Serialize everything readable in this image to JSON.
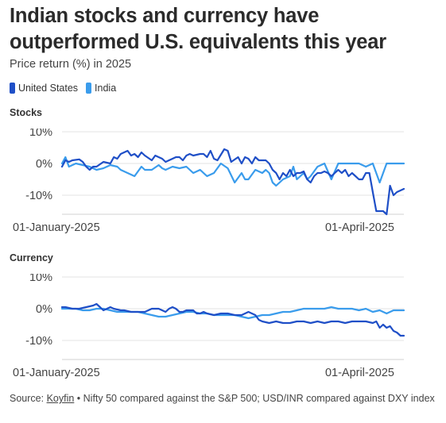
{
  "title": "Indian stocks and currency have outperformed U.S. equivalents this year",
  "subtitle": "Price return (%) in 2025",
  "colors": {
    "United States": "#1f4fc7",
    "India": "#3a9cec"
  },
  "legend": [
    {
      "name": "United States",
      "color": "#1f4fc7"
    },
    {
      "name": "India",
      "color": "#3a9cec"
    }
  ],
  "footer": {
    "source_prefix": "Source: ",
    "source_link": "Koyfin",
    "source_rest": " • Nifty 50 compared against the S&P 500; USD/INR compared against DXY index"
  },
  "chart_data": [
    {
      "type": "line",
      "title": "Stocks",
      "ylim": [
        -16,
        11
      ],
      "yticks": [
        10,
        0,
        -10
      ],
      "ytick_labels": [
        "10%",
        "0%",
        "-10%"
      ],
      "xtick_labels": [
        "01-January-2025",
        "01-April-2025"
      ],
      "xtick_days": [
        0,
        90
      ],
      "xlim": [
        0,
        99
      ],
      "grid": true,
      "series": [
        {
          "name": "United States",
          "days": [
            0,
            1,
            2,
            3,
            5,
            6,
            7,
            8,
            9,
            10,
            12,
            14,
            15,
            16,
            17,
            19,
            20,
            21,
            22,
            23,
            24,
            26,
            27,
            28,
            29,
            30,
            31,
            33,
            34,
            35,
            36,
            37,
            38,
            40,
            41,
            42,
            43,
            44,
            45,
            47,
            48,
            49,
            51,
            52,
            53,
            54,
            55,
            56,
            57,
            58,
            59,
            60,
            61,
            62,
            63,
            64,
            65,
            66,
            67,
            68,
            69,
            70,
            71,
            72,
            73,
            74,
            75,
            76,
            77,
            78,
            79,
            80,
            81,
            82,
            83,
            84,
            85,
            86,
            87,
            88,
            89,
            90,
            91,
            92,
            93,
            94,
            95,
            96,
            97,
            98,
            99
          ],
          "values": [
            -1,
            1,
            0.5,
            1,
            1.3,
            0.5,
            -1,
            -2,
            -1,
            -1,
            0.5,
            0,
            2,
            1.5,
            3,
            4,
            2.5,
            3,
            2,
            3.5,
            2.5,
            1,
            2.5,
            2,
            1.5,
            0.5,
            1,
            2,
            2,
            1,
            2.5,
            3,
            2.5,
            3,
            3,
            2,
            4,
            1.5,
            1,
            4.5,
            4,
            0.5,
            2,
            0,
            2,
            1.5,
            0,
            2,
            1,
            1,
            1,
            0,
            -2,
            -3,
            -5,
            -3,
            -4,
            -2,
            -4,
            -3,
            -3,
            -2.5,
            -5,
            -6,
            -4,
            -3,
            -3,
            -2.5,
            -3,
            -4,
            -3,
            -2,
            -3,
            -2,
            -4,
            -3,
            -4,
            -5,
            -5,
            -3,
            -3,
            -9,
            -15,
            -15,
            -15,
            -16,
            -7,
            -10,
            -9,
            -8.5,
            -8
          ]
        },
        {
          "name": "India",
          "days": [
            0,
            1,
            2,
            4,
            6,
            8,
            10,
            12,
            14,
            16,
            17,
            19,
            21,
            23,
            24,
            26,
            28,
            29,
            30,
            32,
            34,
            36,
            38,
            40,
            42,
            44,
            46,
            48,
            50,
            52,
            53,
            54,
            56,
            58,
            59,
            60,
            61,
            62,
            64,
            66,
            67,
            68,
            70,
            71,
            72,
            74,
            76,
            78,
            80,
            82,
            84,
            86,
            88,
            90,
            92,
            94,
            95,
            96,
            98,
            99
          ],
          "values": [
            0,
            2,
            -1,
            0,
            -0.5,
            -1,
            -2,
            -1.5,
            -0.5,
            -1,
            -2,
            -3,
            -4,
            -1,
            -2,
            -2,
            -0.5,
            -1.5,
            -2,
            -1,
            -1.5,
            -1,
            -3,
            -2,
            -4,
            -3,
            0,
            -1.5,
            -6,
            -3,
            -5,
            -5,
            -2,
            -3,
            -2,
            -3,
            -6,
            -7,
            -5,
            -4,
            -1,
            -5,
            -3,
            -5,
            -4,
            -1,
            0,
            -5,
            0,
            0,
            0,
            0,
            -1,
            0,
            -6,
            0,
            0,
            0,
            0,
            0
          ]
        }
      ]
    },
    {
      "type": "line",
      "title": "Currency",
      "ylim": [
        -16,
        11
      ],
      "yticks": [
        10,
        0,
        -10
      ],
      "ytick_labels": [
        "10%",
        "0%",
        "-10%"
      ],
      "xtick_labels": [
        "01-January-2025",
        "01-April-2025"
      ],
      "xtick_days": [
        0,
        90
      ],
      "xlim": [
        0,
        99
      ],
      "grid": true,
      "series": [
        {
          "name": "United States",
          "days": [
            0,
            1,
            3,
            5,
            7,
            9,
            10,
            11,
            12,
            13,
            14,
            15,
            17,
            18,
            20,
            22,
            24,
            25,
            26,
            28,
            30,
            31,
            32,
            33,
            34,
            35,
            36,
            38,
            39,
            40,
            41,
            42,
            44,
            46,
            48,
            50,
            52,
            54,
            56,
            57,
            58,
            60,
            62,
            64,
            66,
            68,
            70,
            72,
            74,
            76,
            78,
            80,
            82,
            84,
            86,
            88,
            90,
            91,
            92,
            93,
            94,
            95,
            96,
            97,
            98,
            99
          ],
          "values": [
            0.5,
            0.5,
            0,
            0,
            0.5,
            1,
            1.5,
            0.5,
            -0.5,
            0,
            0.5,
            0,
            -0.5,
            -0.5,
            -1,
            -1,
            -1,
            -0.5,
            0,
            0,
            -1,
            0,
            0.5,
            0,
            -1,
            -1,
            -0.5,
            -0.5,
            -1.5,
            -1.5,
            -1,
            -1.5,
            -2,
            -1.5,
            -1.5,
            -2,
            -2,
            -1,
            -2,
            -3.5,
            -4,
            -4.5,
            -4,
            -4.5,
            -4.5,
            -4,
            -4,
            -4.5,
            -4,
            -4.5,
            -4,
            -4,
            -4.5,
            -4,
            -4,
            -4,
            -4.5,
            -4,
            -6,
            -5,
            -6,
            -5.5,
            -7,
            -7.5,
            -8.5,
            -8.5
          ]
        },
        {
          "name": "India",
          "days": [
            0,
            2,
            4,
            6,
            8,
            10,
            12,
            14,
            16,
            18,
            20,
            22,
            24,
            26,
            28,
            30,
            32,
            34,
            36,
            38,
            40,
            42,
            44,
            46,
            48,
            50,
            52,
            54,
            56,
            58,
            60,
            62,
            64,
            66,
            68,
            70,
            72,
            74,
            76,
            78,
            80,
            82,
            84,
            86,
            88,
            90,
            92,
            94,
            96,
            98,
            99
          ],
          "values": [
            0,
            0,
            0,
            -0.5,
            -0.5,
            0,
            0,
            -0.5,
            -1,
            -1,
            -1,
            -1,
            -1.5,
            -2,
            -2.5,
            -2.5,
            -2,
            -1.5,
            -1,
            -1,
            -1.5,
            -1.5,
            -2,
            -2,
            -2,
            -2,
            -2.5,
            -3,
            -2.5,
            -2,
            -2,
            -1.5,
            -1,
            -1,
            -0.5,
            0,
            0,
            0,
            0,
            0.5,
            0,
            0,
            0,
            -0.5,
            0,
            -1,
            -0.5,
            -1.5,
            -0.5,
            -0.5,
            -0.5
          ]
        }
      ]
    }
  ]
}
